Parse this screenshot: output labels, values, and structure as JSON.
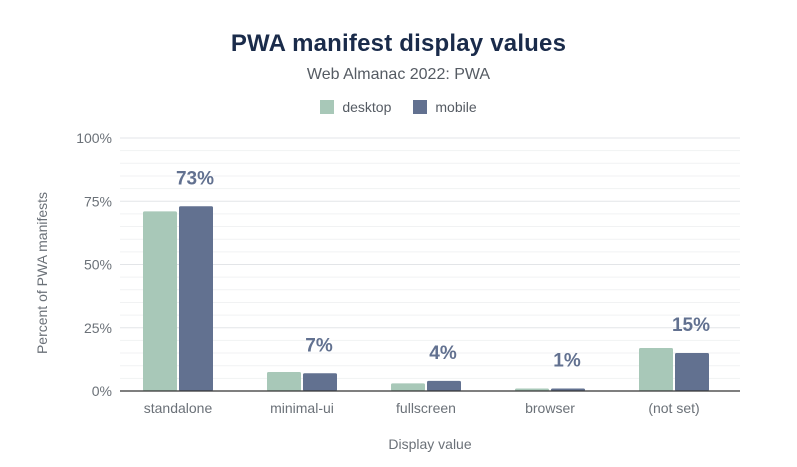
{
  "chart_data": {
    "type": "bar",
    "title": "PWA manifest display values",
    "subtitle": "Web Almanac 2022: PWA",
    "xlabel": "Display value",
    "ylabel": "Percent of PWA manifests",
    "categories": [
      "standalone",
      "minimal-ui",
      "fullscreen",
      "browser",
      "(not set)"
    ],
    "series": [
      {
        "name": "desktop",
        "color": "#a8c8b8",
        "values": [
          71,
          7.5,
          3,
          1,
          17
        ]
      },
      {
        "name": "mobile",
        "color": "#627190",
        "values": [
          73,
          7,
          4,
          1,
          15
        ]
      }
    ],
    "data_labels": [
      "73%",
      "7%",
      "4%",
      "1%",
      "15%"
    ],
    "ylim": [
      0,
      100
    ],
    "yticks": [
      "0%",
      "25%",
      "50%",
      "75%",
      "100%"
    ],
    "grid": true,
    "legend_position": "top-center"
  }
}
